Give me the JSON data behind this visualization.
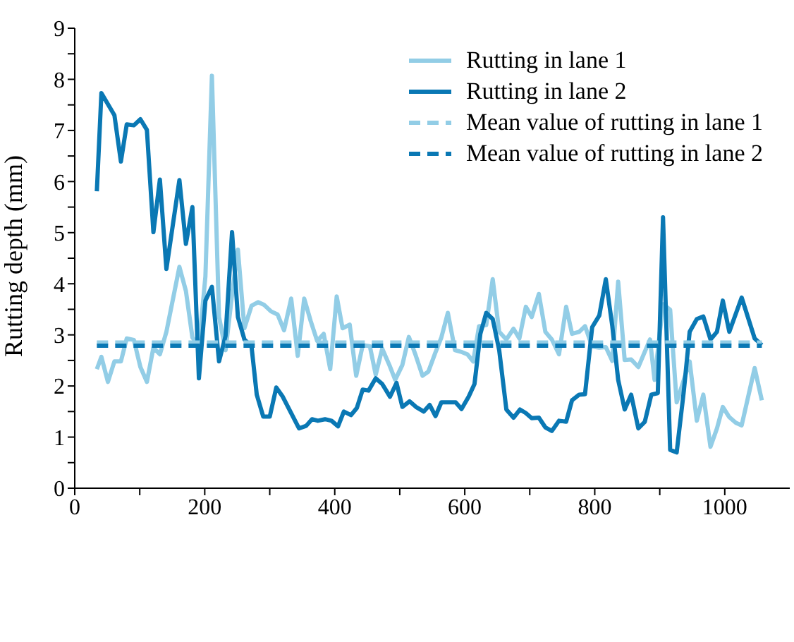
{
  "chart_data": {
    "type": "line",
    "ylabel": "Rutting depth (mm)",
    "xlim": [
      0,
      1100
    ],
    "ylim": [
      0,
      9
    ],
    "xticks": [
      0,
      {
        "value": 100,
        "label": null
      },
      200,
      {
        "value": 300,
        "label": null
      },
      400,
      {
        "value": 500,
        "label": null
      },
      600,
      {
        "value": 700,
        "label": null
      },
      800,
      {
        "value": 900,
        "label": null
      },
      1000
    ],
    "yticks": [
      0,
      {
        "value": 0.5,
        "label": null
      },
      1,
      {
        "value": 1.5,
        "label": null
      },
      2,
      {
        "value": 2.5,
        "label": null
      },
      3,
      {
        "value": 3.5,
        "label": null
      },
      4,
      {
        "value": 4.5,
        "label": null
      },
      5,
      {
        "value": 5.5,
        "label": null
      },
      6,
      {
        "value": 6.5,
        "label": null
      },
      7,
      {
        "value": 7.5,
        "label": null
      },
      8,
      {
        "value": 8.5,
        "label": null
      },
      9
    ],
    "grid": false,
    "legend": "top right",
    "marker": "none",
    "series": [
      {
        "name": "Rutting in lane 1",
        "color": "#92cde6",
        "line_style": "solid",
        "x": [
          34,
          41,
          51,
          61,
          71,
          80,
          91,
          101,
          111,
          121,
          131,
          141,
          161,
          171,
          181,
          191,
          201,
          211,
          222,
          232,
          242,
          251,
          261,
          272,
          282,
          291,
          302,
          312,
          322,
          333,
          343,
          353,
          363,
          373,
          383,
          393,
          403,
          412,
          423,
          433,
          443,
          454,
          463,
          473,
          484,
          493,
          504,
          514,
          524,
          535,
          544,
          555,
          564,
          574,
          585,
          594,
          604,
          613,
          622,
          633,
          643,
          653,
          664,
          675,
          684,
          694,
          703,
          714,
          724,
          734,
          745,
          756,
          765,
          776,
          785,
          796,
          807,
          817,
          827,
          836,
          846,
          856,
          867,
          885,
          892,
          905,
          916,
          926,
          946,
          957,
          967,
          978,
          988,
          997,
          1007,
          1017,
          1026,
          1046,
          1057
        ],
        "values": [
          2.33,
          2.57,
          2.08,
          2.48,
          2.48,
          2.93,
          2.9,
          2.37,
          2.08,
          2.75,
          2.62,
          3.06,
          4.33,
          3.86,
          2.95,
          2.77,
          4.14,
          8.07,
          3.35,
          2.7,
          3.78,
          4.67,
          3.13,
          3.57,
          3.64,
          3.59,
          3.46,
          3.4,
          3.09,
          3.71,
          2.59,
          3.71,
          3.27,
          2.88,
          3.02,
          2.33,
          3.75,
          3.13,
          3.2,
          2.2,
          2.8,
          2.78,
          2.22,
          2.73,
          2.41,
          2.12,
          2.41,
          2.96,
          2.62,
          2.2,
          2.28,
          2.66,
          2.95,
          3.43,
          2.7,
          2.67,
          2.62,
          2.48,
          3.17,
          3.19,
          4.09,
          3.06,
          2.91,
          3.12,
          2.93,
          3.55,
          3.35,
          3.8,
          3.06,
          2.91,
          2.62,
          3.55,
          3.02,
          3.06,
          3.17,
          2.77,
          2.75,
          2.76,
          2.49,
          4.04,
          2.51,
          2.52,
          2.37,
          2.91,
          2.12,
          3.6,
          3.49,
          1.68,
          2.48,
          1.32,
          1.83,
          0.81,
          1.17,
          1.59,
          1.39,
          1.28,
          1.23,
          2.35,
          1.72
        ]
      },
      {
        "name": "Rutting in lane 2",
        "color": "#0a78b4",
        "line_style": "solid",
        "x": [
          34,
          41,
          61,
          71,
          80,
          91,
          101,
          111,
          121,
          131,
          141,
          161,
          171,
          181,
          191,
          201,
          211,
          222,
          232,
          242,
          251,
          261,
          272,
          280,
          290,
          300,
          310,
          320,
          345,
          356,
          365,
          374,
          385,
          395,
          405,
          414,
          425,
          434,
          443,
          452,
          463,
          473,
          485,
          495,
          504,
          515,
          525,
          537,
          546,
          555,
          564,
          576,
          586,
          595,
          606,
          615,
          624,
          633,
          643,
          653,
          664,
          675,
          685,
          694,
          703,
          714,
          724,
          734,
          745,
          756,
          765,
          776,
          785,
          796,
          807,
          817,
          827,
          836,
          846,
          856,
          867,
          877,
          887,
          897,
          905,
          916,
          926,
          937,
          946,
          957,
          967,
          978,
          988,
          997,
          1007,
          1026,
          1046,
          1057
        ],
        "values": [
          5.81,
          7.73,
          7.3,
          6.39,
          7.12,
          7.1,
          7.22,
          7.01,
          5.01,
          6.04,
          4.29,
          6.03,
          4.78,
          5.5,
          2.15,
          3.67,
          3.94,
          2.48,
          2.98,
          5.01,
          3.35,
          2.91,
          2.77,
          1.83,
          1.4,
          1.4,
          1.97,
          1.79,
          1.17,
          1.22,
          1.35,
          1.32,
          1.35,
          1.32,
          1.21,
          1.5,
          1.43,
          1.57,
          1.93,
          1.91,
          2.15,
          2.04,
          1.79,
          2.06,
          1.59,
          1.7,
          1.59,
          1.5,
          1.63,
          1.41,
          1.68,
          1.68,
          1.68,
          1.55,
          1.79,
          2.04,
          3.02,
          3.43,
          3.31,
          2.7,
          1.54,
          1.38,
          1.54,
          1.47,
          1.37,
          1.38,
          1.19,
          1.12,
          1.32,
          1.3,
          1.72,
          1.83,
          1.84,
          3.15,
          3.38,
          4.09,
          3.17,
          2.12,
          1.54,
          1.83,
          1.17,
          1.3,
          1.83,
          1.86,
          5.3,
          0.75,
          0.7,
          1.9,
          3.06,
          3.31,
          3.36,
          2.91,
          3.06,
          3.67,
          3.06,
          3.73,
          2.93,
          2.8
        ]
      },
      {
        "name": "Mean value of rutting in lane 1",
        "color": "#92cde6",
        "line_style": "dashed",
        "x": [
          34,
          1057
        ],
        "values": [
          2.85,
          2.85
        ]
      },
      {
        "name": "Mean value of rutting in lane 2",
        "color": "#0a78b4",
        "line_style": "dashed",
        "x": [
          34,
          1057
        ],
        "values": [
          2.79,
          2.79
        ]
      }
    ]
  }
}
